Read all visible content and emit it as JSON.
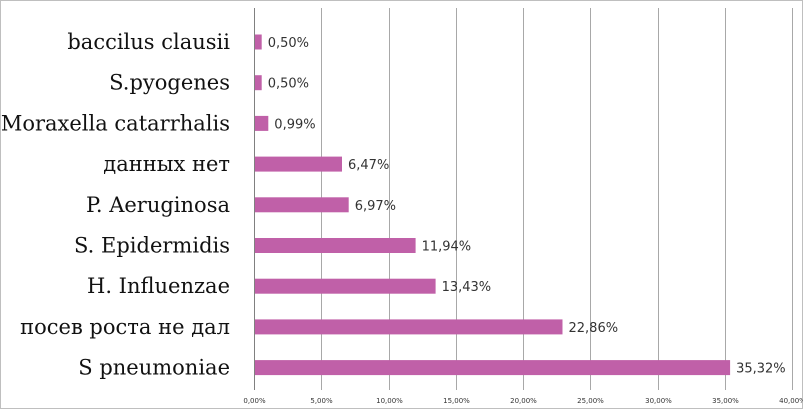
{
  "chart_data": {
    "type": "bar",
    "orientation": "horizontal",
    "title": "",
    "xlabel": "",
    "ylabel": "",
    "categories": [
      "baccilus clausii",
      "S.pyogenes",
      "Moraxella catarrhalis",
      "данных нет",
      "P. Aeruginosa",
      "S. Epidermidis",
      "H. Influenzae",
      "посев роста не дал",
      "S pneumoniae"
    ],
    "values": [
      0.5,
      0.5,
      0.99,
      6.47,
      6.97,
      11.94,
      13.43,
      22.86,
      35.32
    ],
    "value_labels": [
      "0,50%",
      "0,50%",
      "0,99%",
      "6,47%",
      "6,97%",
      "11,94%",
      "13,43%",
      "22,86%",
      "35,32%"
    ],
    "xlim": [
      0,
      40
    ],
    "x_ticks": [
      0,
      5,
      10,
      15,
      20,
      25,
      30,
      35,
      40
    ],
    "x_tick_labels": [
      "0,00%",
      "5,00%",
      "10,00%",
      "15,00%",
      "20,00%",
      "25,00%",
      "30,00%",
      "35,00%",
      "40,00%"
    ],
    "grid": true,
    "legend": "none",
    "colors": {
      "bar": "#c060a8",
      "grid": "#a8a8a8",
      "axis": "#808080",
      "frame": "#bfbfbf"
    }
  }
}
